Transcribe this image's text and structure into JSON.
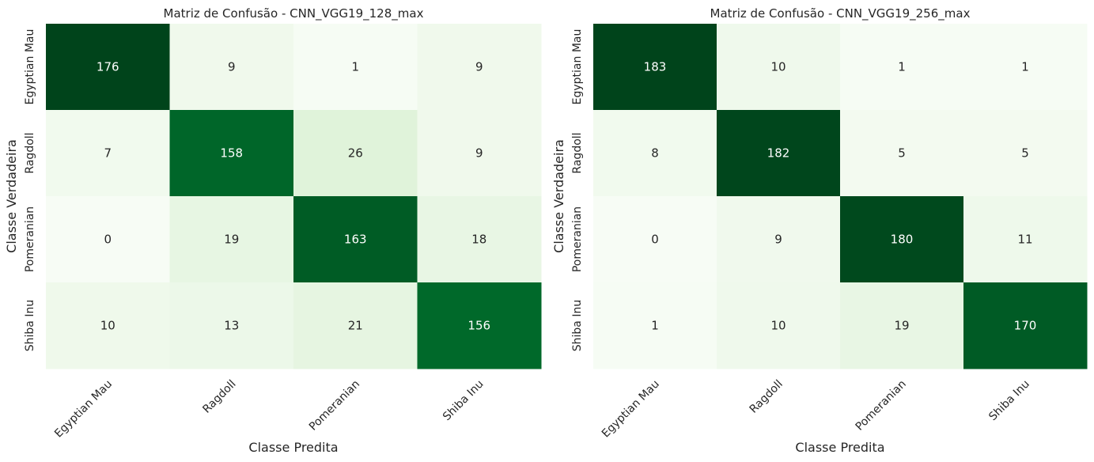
{
  "chart_data": [
    {
      "type": "heatmap",
      "title": "Matriz de Confusão - CNN_VGG19_128_max",
      "xlabel": "Classe Predita",
      "ylabel": "Classe Verdadeira",
      "x_categories": [
        "Egyptian Mau",
        "Ragdoll",
        "Pomeranian",
        "Shiba Inu"
      ],
      "y_categories": [
        "Egyptian Mau",
        "Ragdoll",
        "Pomeranian",
        "Shiba Inu"
      ],
      "values": [
        [
          176,
          9,
          1,
          9
        ],
        [
          7,
          158,
          26,
          9
        ],
        [
          0,
          19,
          163,
          18
        ],
        [
          10,
          13,
          21,
          156
        ]
      ],
      "colormap": "Greens",
      "colorbar": false
    },
    {
      "type": "heatmap",
      "title": "Matriz de Confusão - CNN_VGG19_256_max",
      "xlabel": "Classe Predita",
      "ylabel": "Classe Verdadeira",
      "x_categories": [
        "Egyptian Mau",
        "Ragdoll",
        "Pomeranian",
        "Shiba Inu"
      ],
      "y_categories": [
        "Egyptian Mau",
        "Ragdoll",
        "Pomeranian",
        "Shiba Inu"
      ],
      "values": [
        [
          183,
          10,
          1,
          1
        ],
        [
          8,
          182,
          5,
          5
        ],
        [
          0,
          9,
          180,
          11
        ],
        [
          1,
          10,
          19,
          170
        ]
      ],
      "colormap": "Greens",
      "colorbar": false
    }
  ],
  "colors": {
    "scale_low": "#f7fcf5",
    "scale_mid": "#74c476",
    "scale_high": "#00441b",
    "text_dark": "#262626",
    "text_light": "#ffffff"
  }
}
